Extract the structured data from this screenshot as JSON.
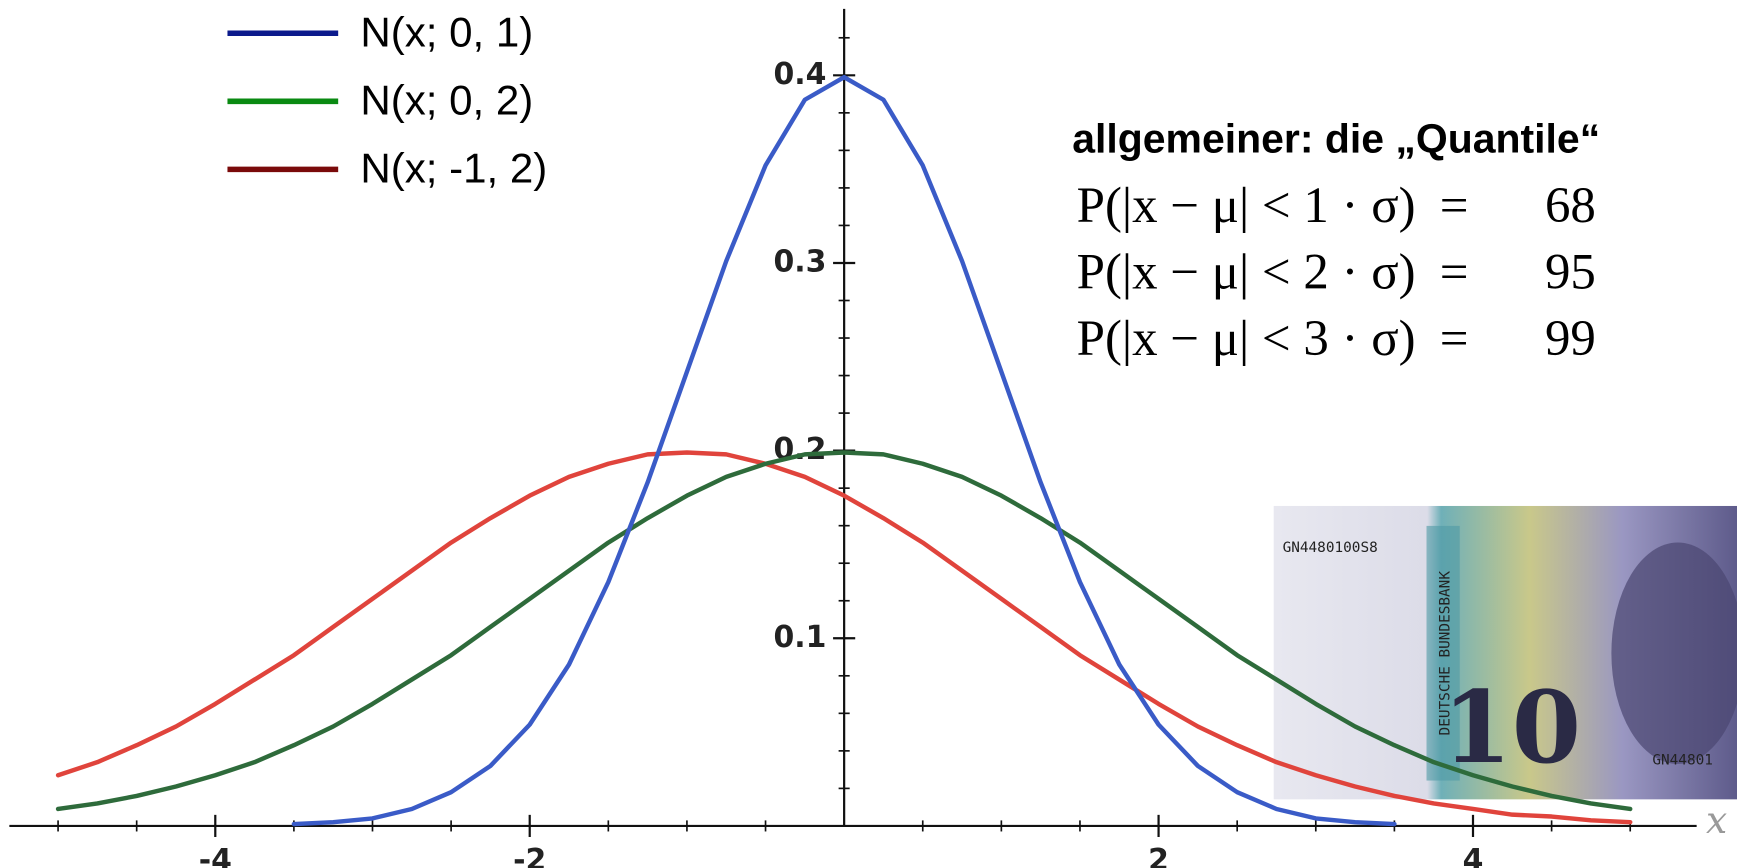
{
  "chart_data": {
    "type": "line",
    "x": [
      -5,
      -4.75,
      -4.5,
      -4.25,
      -4,
      -3.75,
      -3.5,
      -3.25,
      -3,
      -2.75,
      -2.5,
      -2.25,
      -2,
      -1.75,
      -1.5,
      -1.25,
      -1,
      -0.75,
      -0.5,
      -0.25,
      0,
      0.25,
      0.5,
      0.75,
      1,
      1.25,
      1.5,
      1.75,
      2,
      2.25,
      2.5,
      2.75,
      3,
      3.25,
      3.5,
      3.75,
      4,
      4.25,
      4.5,
      4.75,
      5
    ],
    "series": [
      {
        "name": "N(x; 0, 1)",
        "color": "#3a5bc7",
        "legend_color": "#0b1a8c",
        "values": [
          null,
          null,
          null,
          null,
          null,
          null,
          0.001,
          0.002,
          0.004,
          0.009,
          0.018,
          0.032,
          0.054,
          0.086,
          0.13,
          0.183,
          0.242,
          0.301,
          0.352,
          0.387,
          0.399,
          0.387,
          0.352,
          0.301,
          0.242,
          0.183,
          0.13,
          0.086,
          0.054,
          0.032,
          0.018,
          0.009,
          0.004,
          0.002,
          0.001,
          null,
          null,
          null,
          null,
          null,
          null
        ]
      },
      {
        "name": "N(x; 0, 2)",
        "color": "#2e6b3b",
        "legend_color": "#0a8a12",
        "values": [
          0.009,
          0.012,
          0.016,
          0.021,
          0.027,
          0.034,
          0.043,
          0.053,
          0.065,
          0.078,
          0.091,
          0.106,
          0.121,
          0.136,
          0.151,
          0.164,
          0.176,
          0.186,
          0.193,
          0.198,
          0.199,
          0.198,
          0.193,
          0.186,
          0.176,
          0.164,
          0.151,
          0.136,
          0.121,
          0.106,
          0.091,
          0.078,
          0.065,
          0.053,
          0.043,
          0.034,
          0.027,
          0.021,
          0.016,
          0.012,
          0.009
        ]
      },
      {
        "name": "N(x; -1, 2)",
        "color": "#e0443c",
        "legend_color": "#7a0a0a",
        "values": [
          0.027,
          0.034,
          0.043,
          0.053,
          0.065,
          0.078,
          0.091,
          0.106,
          0.121,
          0.136,
          0.151,
          0.164,
          0.176,
          0.186,
          0.193,
          0.198,
          0.199,
          0.198,
          0.193,
          0.186,
          0.176,
          0.164,
          0.151,
          0.136,
          0.121,
          0.106,
          0.091,
          0.078,
          0.065,
          0.053,
          0.043,
          0.034,
          0.027,
          0.021,
          0.016,
          0.012,
          0.009,
          0.006,
          0.005,
          0.003,
          0.002
        ]
      }
    ],
    "xlim": [
      -5.3,
      5.4
    ],
    "ylim": [
      0,
      0.434
    ],
    "xticks": [
      -4,
      -2,
      2,
      4
    ],
    "yticks": [
      0.1,
      0.2,
      0.3,
      0.4
    ],
    "xticks_minor": [
      -5,
      -4.5,
      -3.5,
      -3,
      -2.5,
      -1.5,
      -1,
      -0.5,
      0.5,
      1,
      1.5,
      2.5,
      3,
      3.5,
      4.5,
      5
    ],
    "yticks_minor": [
      0.02,
      0.04,
      0.06,
      0.08,
      0.12,
      0.14,
      0.16,
      0.18,
      0.22,
      0.24,
      0.26,
      0.28,
      0.32,
      0.34,
      0.36,
      0.38,
      0.42
    ],
    "xlabel": "x",
    "legend": "top-left"
  },
  "annotation": {
    "title": "allgemeiner: die „Quantile“",
    "rows": [
      {
        "lhs": "P(|x − μ| < 1 · σ)",
        "eq": "=",
        "rhs": "68"
      },
      {
        "lhs": "P(|x − μ| < 2 · σ)",
        "eq": "=",
        "rhs": "95"
      },
      {
        "lhs": "P(|x − μ| < 3 · σ)",
        "eq": "=",
        "rhs": "99"
      }
    ]
  },
  "banknote": {
    "serial": "GN4480100S8",
    "bank": "DEUTSCHE BUNDESBANK",
    "denomination": "10",
    "serial_right": "GN44801"
  }
}
